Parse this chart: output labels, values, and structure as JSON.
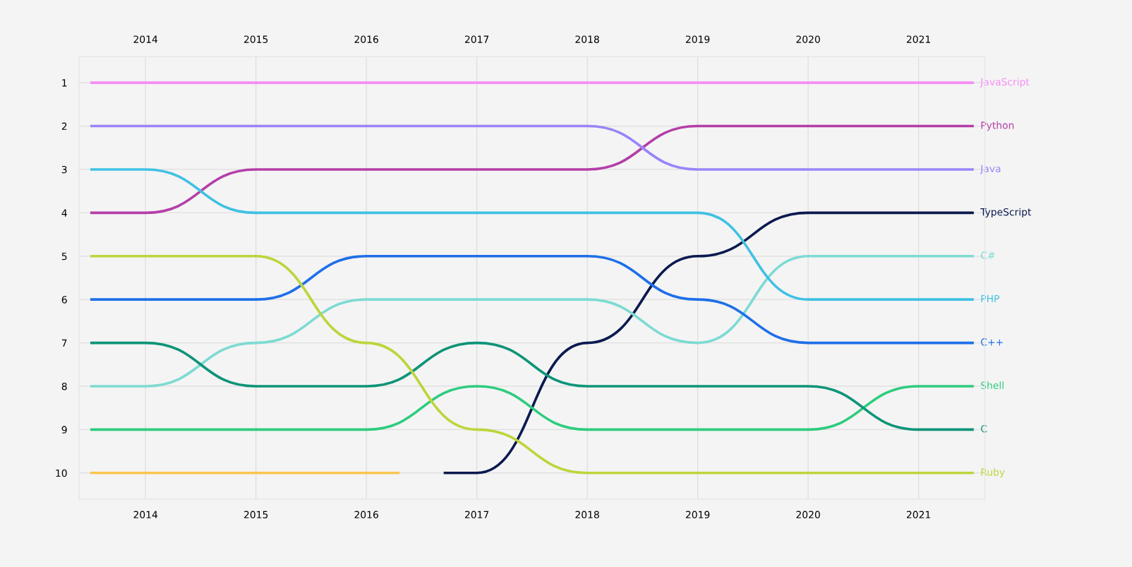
{
  "chart_data": {
    "type": "line",
    "x": [
      2013.5,
      2014,
      2015,
      2016,
      2017,
      2018,
      2019,
      2020,
      2021,
      2021.5
    ],
    "series": [
      {
        "name": "JavaScript",
        "color": "#f78cf7",
        "values": [
          1,
          1,
          1,
          1,
          1,
          1,
          1,
          1,
          1,
          1
        ]
      },
      {
        "name": "Python",
        "color": "#b43ea8",
        "values": [
          4,
          4,
          3,
          3,
          3,
          3,
          2,
          2,
          2,
          2
        ]
      },
      {
        "name": "Java",
        "color": "#9a84f7",
        "values": [
          2,
          2,
          2,
          2,
          2,
          2,
          3,
          3,
          3,
          3
        ]
      },
      {
        "name": "TypeScript",
        "color": "#0b1a4f",
        "x": [
          2016.7,
          2017,
          2018,
          2019,
          2020,
          2021,
          2021.5
        ],
        "values": [
          10,
          10,
          7,
          5,
          4,
          4,
          4
        ]
      },
      {
        "name": "C#",
        "color": "#7ddbd3",
        "values": [
          8,
          8,
          7,
          6,
          6,
          6,
          7,
          5,
          5,
          5
        ]
      },
      {
        "name": "PHP",
        "color": "#3fc1e3",
        "values": [
          3,
          3,
          4,
          4,
          4,
          4,
          4,
          6,
          6,
          6
        ]
      },
      {
        "name": "C++",
        "color": "#1f6fe8",
        "values": [
          6,
          6,
          6,
          5,
          5,
          5,
          6,
          7,
          7,
          7
        ]
      },
      {
        "name": "Shell",
        "color": "#2ecc7e",
        "values": [
          9,
          9,
          9,
          9,
          8,
          9,
          9,
          9,
          8,
          8
        ]
      },
      {
        "name": "C",
        "color": "#0e9478",
        "values": [
          7,
          7,
          8,
          8,
          7,
          8,
          8,
          8,
          9,
          9
        ]
      },
      {
        "name": "Ruby",
        "color": "#bed43a",
        "values": [
          5,
          5,
          5,
          7,
          9,
          10,
          10,
          10,
          10,
          10
        ]
      },
      {
        "color": "#f9c74f",
        "x": [
          2013.5,
          2014,
          2015,
          2016,
          2016.3
        ],
        "values": [
          10,
          10,
          10,
          10,
          10
        ]
      }
    ],
    "xlim": [
      2013.4,
      2021.6
    ],
    "xticks": [
      2014,
      2015,
      2016,
      2017,
      2018,
      2019,
      2020,
      2021
    ],
    "x2lim": [
      2013.4,
      2021.6
    ],
    "x2ticks": [
      2014,
      2015,
      2016,
      2017,
      2018,
      2019,
      2020,
      2021
    ],
    "ylim": [
      10.6,
      0.4
    ],
    "yticks": [
      1,
      2,
      3,
      4,
      5,
      6,
      7,
      8,
      9,
      10
    ],
    "grid": true,
    "marker": "none",
    "line_style": "solid"
  }
}
